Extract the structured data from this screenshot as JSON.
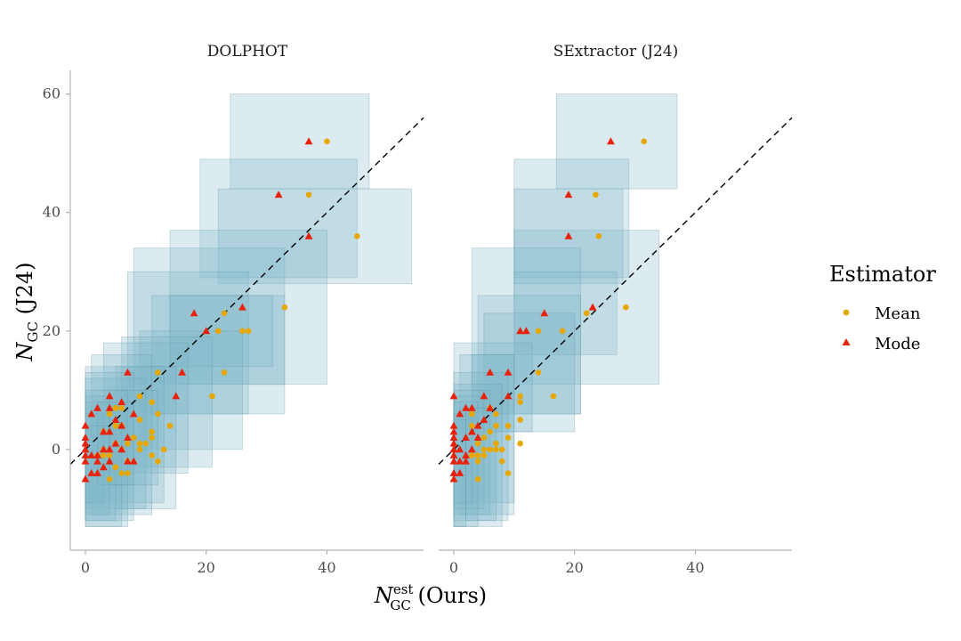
{
  "chart_data": [
    {
      "type": "scatter",
      "title": "DOLPHOT",
      "xlabel": "N_GC^est (Ours)",
      "ylabel": "N_GC (J24)",
      "xlim": [
        -2.5,
        56
      ],
      "ylim": [
        -17,
        64
      ],
      "x_ticks": [
        0,
        20,
        40
      ],
      "y_ticks": [
        0,
        20,
        40,
        60
      ],
      "reference_line": "y = x",
      "boxes": [
        {
          "x0": 24,
          "x1": 47,
          "y0": 44,
          "y1": 60
        },
        {
          "x0": 19,
          "x1": 45,
          "y0": 29,
          "y1": 49
        },
        {
          "x0": 22,
          "x1": 54,
          "y0": 28,
          "y1": 44
        },
        {
          "x0": 8,
          "x1": 33,
          "y0": 11,
          "y1": 34
        },
        {
          "x0": 14,
          "x1": 40,
          "y0": 11,
          "y1": 37
        },
        {
          "x0": 7,
          "x1": 27,
          "y0": 6,
          "y1": 30
        },
        {
          "x0": 11,
          "x1": 33,
          "y0": 6,
          "y1": 26
        },
        {
          "x0": 14,
          "x1": 31,
          "y0": 14,
          "y1": 26
        },
        {
          "x0": 9,
          "x1": 26,
          "y0": 0,
          "y1": 20
        },
        {
          "x0": 6,
          "x1": 21,
          "y0": -3,
          "y1": 19
        },
        {
          "x0": 3,
          "x1": 17,
          "y0": -4,
          "y1": 18
        },
        {
          "x0": 5,
          "x1": 15,
          "y0": -10,
          "y1": 14
        },
        {
          "x0": 0,
          "x1": 13,
          "y0": -9,
          "y1": 14
        },
        {
          "x0": 1,
          "x1": 11,
          "y0": -11,
          "y1": 16
        },
        {
          "x0": 0,
          "x1": 10,
          "y0": -10,
          "y1": 12
        },
        {
          "x0": 0,
          "x1": 8,
          "y0": -12,
          "y1": 13
        },
        {
          "x0": 0,
          "x1": 7,
          "y0": -13,
          "y1": 10
        },
        {
          "x0": 0,
          "x1": 5,
          "y0": -12,
          "y1": 8
        },
        {
          "x0": 0,
          "x1": 4,
          "y0": -11,
          "y1": 9
        },
        {
          "x0": 0,
          "x1": 3,
          "y0": -9,
          "y1": 6
        },
        {
          "x0": 2,
          "x1": 8,
          "y0": -6,
          "y1": 8
        },
        {
          "x0": 0,
          "x1": 6,
          "y0": -13,
          "y1": 4
        },
        {
          "x0": 4,
          "x1": 12,
          "y0": -6,
          "y1": 10
        }
      ],
      "series": [
        {
          "name": "Mean",
          "marker": "circle",
          "color": "#E6A800",
          "points": [
            [
              40,
              52
            ],
            [
              37,
              43
            ],
            [
              45,
              36
            ],
            [
              33,
              24
            ],
            [
              23,
              23
            ],
            [
              22,
              20
            ],
            [
              26,
              20
            ],
            [
              27,
              20
            ],
            [
              23,
              13
            ],
            [
              21,
              9
            ],
            [
              12,
              13
            ],
            [
              9,
              9
            ],
            [
              11,
              8
            ],
            [
              12,
              6
            ],
            [
              6,
              7
            ],
            [
              5,
              7
            ],
            [
              4,
              6
            ],
            [
              9,
              5
            ],
            [
              14,
              4
            ],
            [
              5,
              4
            ],
            [
              6,
              4
            ],
            [
              11,
              3
            ],
            [
              3,
              3
            ],
            [
              8,
              2
            ],
            [
              11,
              2
            ],
            [
              10,
              1
            ],
            [
              9,
              1
            ],
            [
              7,
              1
            ],
            [
              5,
              1
            ],
            [
              13,
              0
            ],
            [
              3,
              0
            ],
            [
              6,
              0
            ],
            [
              9,
              0
            ],
            [
              4,
              -1
            ],
            [
              2,
              -1
            ],
            [
              3,
              -1
            ],
            [
              11,
              -1
            ],
            [
              7,
              -2
            ],
            [
              12,
              -2
            ],
            [
              5,
              -3
            ],
            [
              6,
              -4
            ],
            [
              7,
              -4
            ],
            [
              4,
              -5
            ]
          ]
        },
        {
          "name": "Mode",
          "marker": "triangle",
          "color": "#E8210B",
          "points": [
            [
              37,
              52
            ],
            [
              32,
              43
            ],
            [
              37,
              36
            ],
            [
              26,
              24
            ],
            [
              18,
              23
            ],
            [
              20,
              20
            ],
            [
              16,
              13
            ],
            [
              7,
              13
            ],
            [
              15,
              9
            ],
            [
              4,
              9
            ],
            [
              6,
              8
            ],
            [
              2,
              7
            ],
            [
              4,
              7
            ],
            [
              8,
              6
            ],
            [
              1,
              6
            ],
            [
              5,
              5
            ],
            [
              0,
              4
            ],
            [
              6,
              4
            ],
            [
              4,
              3
            ],
            [
              3,
              3
            ],
            [
              7,
              2
            ],
            [
              0,
              2
            ],
            [
              5,
              1
            ],
            [
              0,
              1
            ],
            [
              4,
              0
            ],
            [
              6,
              0
            ],
            [
              0,
              0
            ],
            [
              3,
              0
            ],
            [
              0,
              -1
            ],
            [
              1,
              -1
            ],
            [
              2,
              -1
            ],
            [
              7,
              -2
            ],
            [
              0,
              -2
            ],
            [
              2,
              -2
            ],
            [
              4,
              -2
            ],
            [
              8,
              -2
            ],
            [
              3,
              -3
            ],
            [
              1,
              -4
            ],
            [
              2,
              -4
            ],
            [
              0,
              -5
            ]
          ]
        }
      ]
    },
    {
      "type": "scatter",
      "title": "SExtractor (J24)",
      "xlabel": "N_GC^est (Ours)",
      "ylabel": "N_GC (J24)",
      "xlim": [
        -2.5,
        56
      ],
      "ylim": [
        -17,
        64
      ],
      "x_ticks": [
        0,
        20,
        40
      ],
      "y_ticks": [
        0,
        20,
        40,
        60
      ],
      "reference_line": "y = x",
      "boxes": [
        {
          "x0": 17,
          "x1": 37,
          "y0": 44,
          "y1": 60
        },
        {
          "x0": 10,
          "x1": 29,
          "y0": 29,
          "y1": 49
        },
        {
          "x0": 10,
          "x1": 34,
          "y0": 11,
          "y1": 37
        },
        {
          "x0": 10,
          "x1": 28,
          "y0": 28,
          "y1": 44
        },
        {
          "x0": 3,
          "x1": 21,
          "y0": 6,
          "y1": 34
        },
        {
          "x0": 10,
          "x1": 27,
          "y0": 16,
          "y1": 30
        },
        {
          "x0": 4,
          "x1": 21,
          "y0": 6,
          "y1": 26
        },
        {
          "x0": 5,
          "x1": 20,
          "y0": 3,
          "y1": 23
        },
        {
          "x0": 0,
          "x1": 13,
          "y0": 3,
          "y1": 18
        },
        {
          "x0": 1,
          "x1": 10,
          "y0": -11,
          "y1": 16
        },
        {
          "x0": 3,
          "x1": 10,
          "y0": -9,
          "y1": 16
        },
        {
          "x0": 0,
          "x1": 9,
          "y0": -12,
          "y1": 13
        },
        {
          "x0": 0,
          "x1": 8,
          "y0": -13,
          "y1": 11
        },
        {
          "x0": 0,
          "x1": 6,
          "y0": -11,
          "y1": 10
        },
        {
          "x0": 0,
          "x1": 5,
          "y0": -10,
          "y1": 9
        },
        {
          "x0": 0,
          "x1": 4,
          "y0": -13,
          "y1": 8
        },
        {
          "x0": 0,
          "x1": 3,
          "y0": -9,
          "y1": 6
        },
        {
          "x0": 2,
          "x1": 7,
          "y0": -12,
          "y1": 7
        },
        {
          "x0": 0,
          "x1": 2,
          "y0": -13,
          "y1": 5
        }
      ],
      "series": [
        {
          "name": "Mean",
          "marker": "circle",
          "color": "#E6A800",
          "points": [
            [
              31.5,
              52
            ],
            [
              23.5,
              43
            ],
            [
              24,
              36
            ],
            [
              28.5,
              24
            ],
            [
              22,
              23
            ],
            [
              18,
              20
            ],
            [
              14,
              20
            ],
            [
              14,
              13
            ],
            [
              16.5,
              9
            ],
            [
              11,
              9
            ],
            [
              11,
              8
            ],
            [
              6,
              7
            ],
            [
              3,
              6
            ],
            [
              7,
              6
            ],
            [
              11,
              5
            ],
            [
              9,
              4
            ],
            [
              7,
              4
            ],
            [
              3,
              4
            ],
            [
              6,
              3
            ],
            [
              5,
              2
            ],
            [
              9,
              2
            ],
            [
              4,
              1
            ],
            [
              7,
              1
            ],
            [
              11,
              1
            ],
            [
              6,
              0
            ],
            [
              7,
              0
            ],
            [
              5,
              0
            ],
            [
              8,
              0
            ],
            [
              3,
              -1
            ],
            [
              4,
              -1
            ],
            [
              3,
              -1
            ],
            [
              5,
              -1
            ],
            [
              8,
              -2
            ],
            [
              4,
              -2
            ],
            [
              9,
              -4
            ],
            [
              4,
              -5
            ]
          ]
        },
        {
          "name": "Mode",
          "marker": "triangle",
          "color": "#E8210B",
          "points": [
            [
              26,
              52
            ],
            [
              19,
              43
            ],
            [
              19,
              36
            ],
            [
              23,
              24
            ],
            [
              15,
              23
            ],
            [
              11,
              20
            ],
            [
              12,
              20
            ],
            [
              9,
              13
            ],
            [
              6,
              13
            ],
            [
              0,
              9
            ],
            [
              5,
              9
            ],
            [
              9,
              9
            ],
            [
              2,
              7
            ],
            [
              3,
              7
            ],
            [
              6,
              7
            ],
            [
              1,
              6
            ],
            [
              5,
              5
            ],
            [
              0,
              4
            ],
            [
              4,
              4
            ],
            [
              3,
              3
            ],
            [
              0,
              3
            ],
            [
              4,
              2
            ],
            [
              0,
              2
            ],
            [
              2,
              2
            ],
            [
              0,
              1
            ],
            [
              1,
              0
            ],
            [
              0,
              0
            ],
            [
              3,
              0
            ],
            [
              2,
              -1
            ],
            [
              0,
              -1
            ],
            [
              1,
              -2
            ],
            [
              0,
              -2
            ],
            [
              2,
              -2
            ],
            [
              0,
              -4
            ],
            [
              1,
              -4
            ],
            [
              0,
              -5
            ]
          ]
        }
      ]
    }
  ],
  "y_axis_title": {
    "main": "N",
    "sub": "GC",
    "suffix": " (J24)"
  },
  "x_axis_title": {
    "main": "N",
    "sub": "GC",
    "sup": "est",
    "suffix": " (Ours)"
  },
  "legend": {
    "title": "Estimator",
    "items": [
      {
        "label": "Mean",
        "marker": "circle",
        "color": "#E6A800"
      },
      {
        "label": "Mode",
        "marker": "triangle",
        "color": "#E8210B"
      }
    ]
  },
  "colors": {
    "box_fill": "#7FB8C8",
    "box_edge": "#5B8FA0",
    "axis": "#b3b3b3"
  }
}
